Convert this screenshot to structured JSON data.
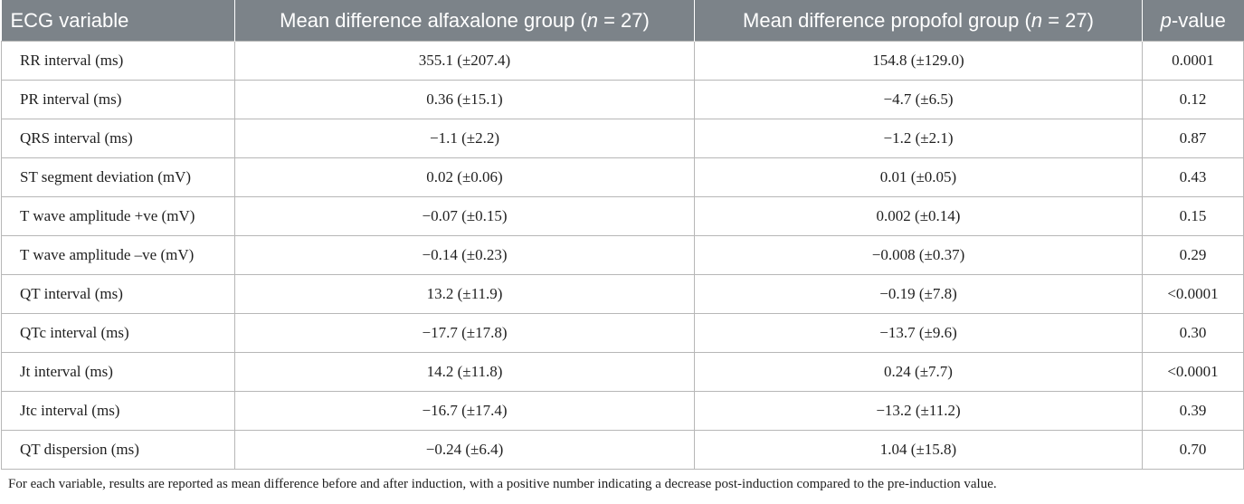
{
  "table": {
    "headers": [
      {
        "text": "ECG variable"
      },
      {
        "pre": "Mean difference alfaxalone group (",
        "ital": "n",
        "post": " = 27)"
      },
      {
        "pre": "Mean difference propofol group (",
        "ital": "n",
        "post": " = 27)"
      },
      {
        "pre": "",
        "ital": "p",
        "post": "-value"
      }
    ],
    "rows": [
      [
        "RR interval (ms)",
        "355.1 (±207.4)",
        "154.8 (±129.0)",
        "0.0001"
      ],
      [
        "PR interval (ms)",
        "0.36 (±15.1)",
        "−4.7 (±6.5)",
        "0.12"
      ],
      [
        "QRS interval (ms)",
        "−1.1 (±2.2)",
        "−1.2 (±2.1)",
        "0.87"
      ],
      [
        "ST segment deviation (mV)",
        "0.02 (±0.06)",
        "0.01 (±0.05)",
        "0.43"
      ],
      [
        "T wave amplitude +ve (mV)",
        "−0.07 (±0.15)",
        "0.002 (±0.14)",
        "0.15"
      ],
      [
        "T wave amplitude –ve (mV)",
        "−0.14 (±0.23)",
        "−0.008 (±0.37)",
        "0.29"
      ],
      [
        "QT interval (ms)",
        "13.2 (±11.9)",
        "−0.19 (±7.8)",
        "<0.0001"
      ],
      [
        "QTc interval (ms)",
        "−17.7 (±17.8)",
        "−13.7 (±9.6)",
        "0.30"
      ],
      [
        "Jt interval (ms)",
        "14.2 (±11.8)",
        "0.24 (±7.7)",
        "<0.0001"
      ],
      [
        "Jtc interval (ms)",
        "−16.7 (±17.4)",
        "−13.2 (±11.2)",
        "0.39"
      ],
      [
        "QT dispersion (ms)",
        "−0.24 (±6.4)",
        "1.04 (±15.8)",
        "0.70"
      ]
    ],
    "footnote": "For each variable, results are reported as mean difference before and after induction, with a positive number indicating a decrease post-induction compared to the pre-induction value."
  },
  "colors": {
    "header_bg": "#7c8389",
    "header_text": "#ffffff",
    "border": "#b7b7b7"
  }
}
